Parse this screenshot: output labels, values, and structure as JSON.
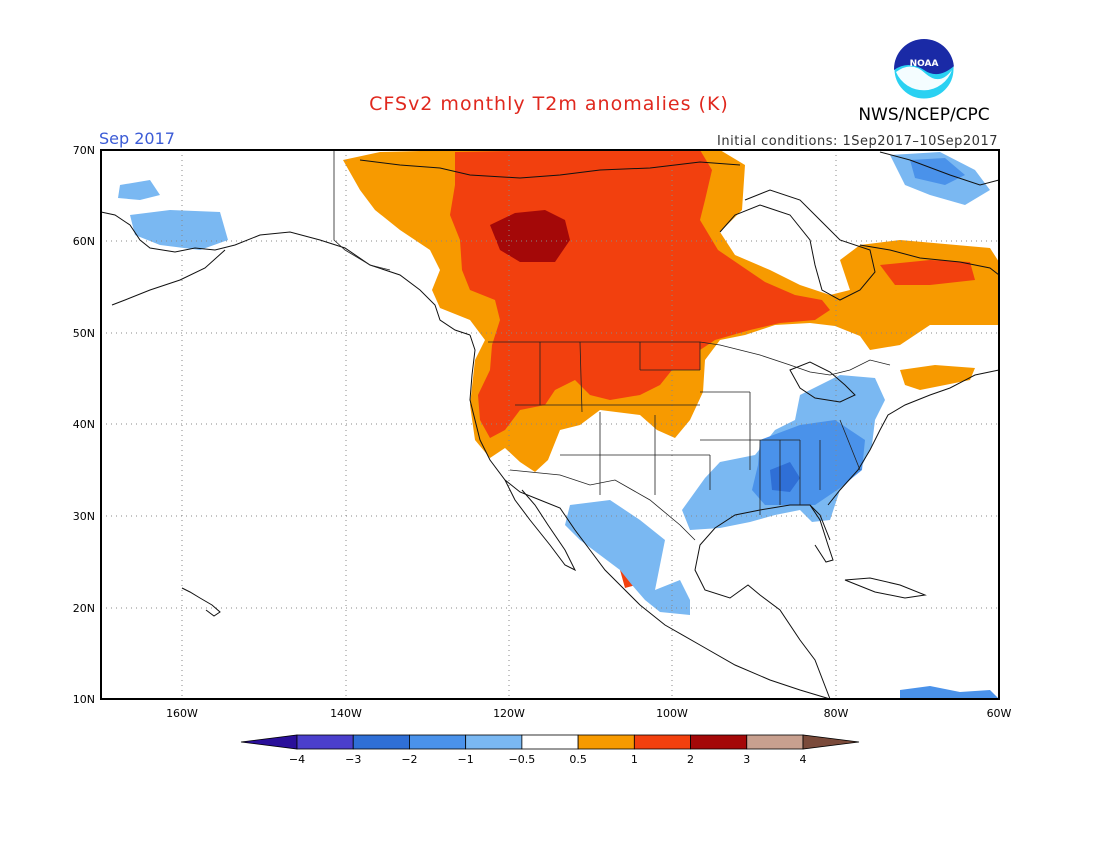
{
  "header": {
    "title": "CFSv2 monthly T2m anomalies (K)",
    "valid_month": "Sep 2017",
    "initial_conditions": "Initial conditions: 1Sep2017–10Sep2017",
    "agency": "NWS/NCEP/CPC",
    "logo_text": "NOAA"
  },
  "map": {
    "lat_labels": [
      "70N",
      "60N",
      "50N",
      "40N",
      "30N",
      "20N",
      "10N"
    ],
    "lon_labels": [
      "160W",
      "140W",
      "120W",
      "100W",
      "80W",
      "60W"
    ],
    "lat_range": [
      10,
      70
    ],
    "lon_range": [
      -170,
      -60
    ],
    "grid": "dotted"
  },
  "colorbar": {
    "ticks": [
      "−4",
      "−3",
      "−2",
      "−1",
      "−0.5",
      "0.5",
      "1",
      "2",
      "3",
      "4"
    ],
    "colors": [
      "#2a0f9a",
      "#4b3fcc",
      "#2f6fd6",
      "#4a92ea",
      "#7ab8f2",
      "#ffffff",
      "#f79a00",
      "#f2400e",
      "#a40808",
      "#c8a08f",
      "#7a4a3a"
    ]
  },
  "anomaly_regions": [
    {
      "name": "canada-warm",
      "category": "1 to 2",
      "color": "#f2400e"
    },
    {
      "name": "west-conus-warm",
      "category": "0.5 to 1",
      "color": "#f79a00"
    },
    {
      "name": "central-canada-hot",
      "category": "2 to 3",
      "color": "#a40808"
    },
    {
      "name": "southeast-conus-cool",
      "category": "-2 to -1",
      "color": "#4a92ea"
    },
    {
      "name": "mexico-cool",
      "category": "-1 to -0.5",
      "color": "#7ab8f2"
    },
    {
      "name": "alaska-cool",
      "category": "-1 to -0.5",
      "color": "#7ab8f2"
    }
  ]
}
